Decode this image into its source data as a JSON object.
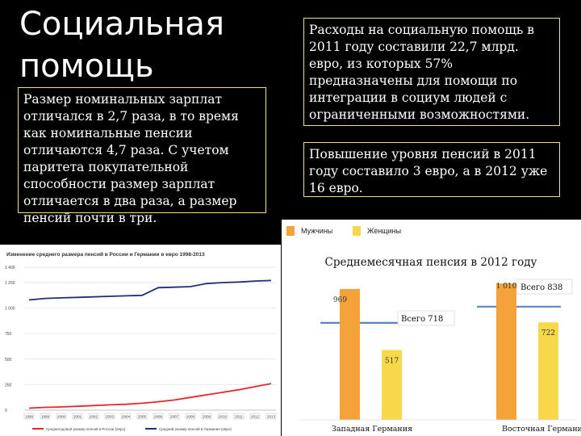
{
  "slide": {
    "title": "Социальная помощь",
    "box_left": "Размер номинальных зарплат отличался в 2,7 раза, в то время как номинальные пенсии отличаются 4,7 раза. С учетом паритета покупательной способности размер зарплат отличается в два раза, а размер пенсий почти в три.",
    "box_right_1": "Расходы на социальную помощь в 2011 году составили 22,7 млрд. евро, из которых 57% предназначены для помощи по интеграции в социум людей с ограниченными возможностями.",
    "box_right_2": "Повышение уровня пенсий в 2011 году составило 3 евро, а в 2012 уже 16 евро."
  },
  "chart_data": [
    {
      "type": "line",
      "title": "Изменение среднего размера пенсий в России и Германии в евро 1998-2013",
      "x": [
        "1998",
        "1999",
        "2000",
        "2001",
        "2002",
        "2003",
        "2004",
        "2005",
        "2006",
        "2007",
        "2008",
        "2009",
        "2010",
        "2011",
        "2012",
        "2013"
      ],
      "ylim": [
        0,
        1400
      ],
      "yticks": [
        "0",
        "250",
        "500",
        "750",
        "1 000",
        "1 250",
        "1 400"
      ],
      "grid": true,
      "legend_position": "bottom",
      "series": [
        {
          "name": "Среднегодовой размер пенсий в России (евро)",
          "color": "#e8262a",
          "values": [
            20,
            28,
            32,
            38,
            45,
            52,
            58,
            68,
            82,
            100,
            125,
            150,
            175,
            200,
            230,
            260
          ]
        },
        {
          "name": "Средний размер пенсий в Германии (евро)",
          "color": "#1f2f7a",
          "values": [
            1080,
            1095,
            1100,
            1105,
            1110,
            1115,
            1120,
            1125,
            1200,
            1205,
            1210,
            1240,
            1250,
            1255,
            1265,
            1270
          ]
        }
      ]
    },
    {
      "type": "bar",
      "title": "Среднемесячная пенсия в 2012 году",
      "categories": [
        "Западная Германия",
        "Восточная Германия"
      ],
      "series": [
        {
          "name": "Мужчины",
          "color": "#f4a23a",
          "values": [
            969,
            1010
          ]
        },
        {
          "name": "Женщины",
          "color": "#f7d84a",
          "values": [
            517,
            722
          ]
        }
      ],
      "labels": [
        [
          "969",
          "517"
        ],
        [
          "1 010",
          "722"
        ]
      ],
      "totals": [
        {
          "label": "Всего 718",
          "value": 718
        },
        {
          "label": "Всего 838",
          "value": 838
        }
      ],
      "total_line_color": "#5b84c4",
      "ylim": [
        0,
        1100
      ],
      "legend_position": "top-left"
    }
  ]
}
